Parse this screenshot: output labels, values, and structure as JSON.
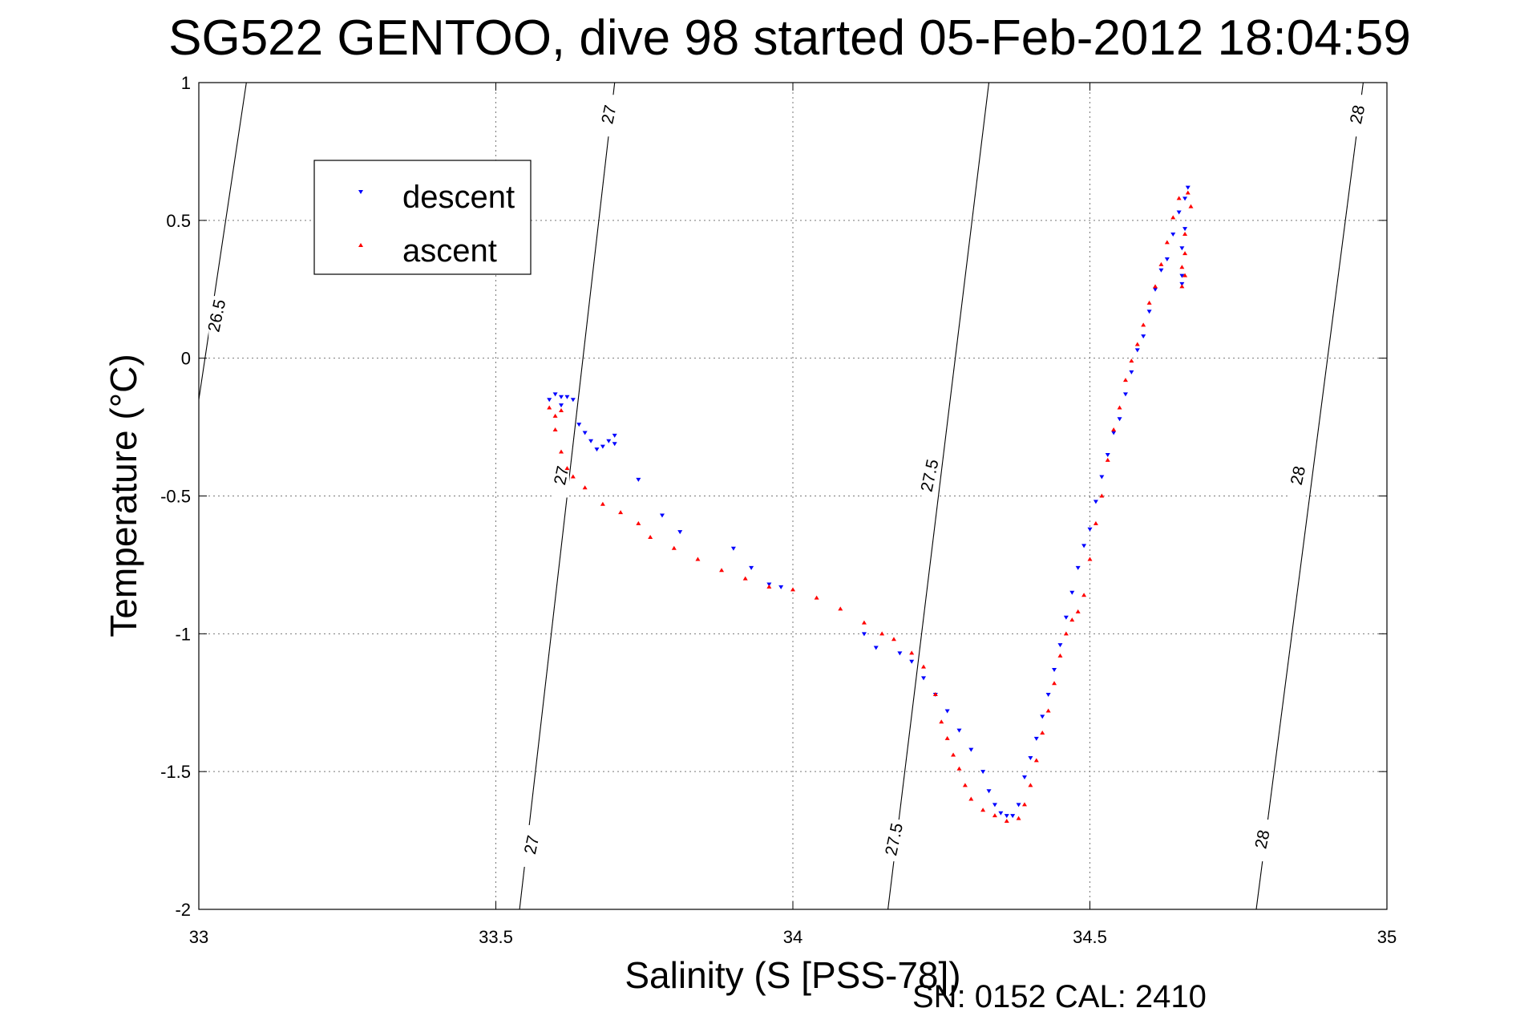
{
  "chart_data": {
    "type": "scatter",
    "title": "SG522 GENTOO, dive 98 started 05-Feb-2012 18:04:59",
    "xlabel": "Salinity (S [PSS-78])",
    "ylabel": "Temperature (°C)",
    "xlim": [
      33,
      35
    ],
    "ylim": [
      -2,
      1
    ],
    "xticks": [
      "33",
      "33.5",
      "34",
      "34.5",
      "35"
    ],
    "yticks": [
      "-2",
      "-1.5",
      "-1",
      "-0.5",
      "0",
      "0.5",
      "1"
    ],
    "grid": true,
    "legend_position": "top-left",
    "footer": "SN: 0152  CAL: 2410",
    "density_contours": [
      {
        "label": "26.5",
        "points": [
          [
            33.0,
            -0.15
          ],
          [
            33.08,
            1.0
          ]
        ]
      },
      {
        "label": "27",
        "points": [
          [
            33.54,
            -2.0
          ],
          [
            33.7,
            1.0
          ]
        ]
      },
      {
        "label": "27.5",
        "points": [
          [
            34.16,
            -2.0
          ],
          [
            34.33,
            1.0
          ]
        ]
      },
      {
        "label": "28",
        "points": [
          [
            34.78,
            -2.0
          ],
          [
            34.96,
            1.0
          ]
        ]
      }
    ],
    "contour_labels": [
      {
        "text": "26.5",
        "x": 33.03,
        "y": 0.15
      },
      {
        "text": "27",
        "x": 33.69,
        "y": 0.88
      },
      {
        "text": "27",
        "x": 33.61,
        "y": -0.43
      },
      {
        "text": "27",
        "x": 33.56,
        "y": -1.77
      },
      {
        "text": "27.5",
        "x": 34.23,
        "y": -0.43
      },
      {
        "text": "27.5",
        "x": 34.17,
        "y": -1.75
      },
      {
        "text": "28",
        "x": 34.95,
        "y": 0.88
      },
      {
        "text": "28",
        "x": 34.85,
        "y": -0.43
      },
      {
        "text": "28",
        "x": 34.79,
        "y": -1.75
      }
    ],
    "series": [
      {
        "name": "descent",
        "color": "#0000ff",
        "marker": "triangle-down",
        "points": [
          [
            33.59,
            -0.15
          ],
          [
            33.6,
            -0.13
          ],
          [
            33.61,
            -0.14
          ],
          [
            33.62,
            -0.14
          ],
          [
            33.63,
            -0.15
          ],
          [
            33.61,
            -0.17
          ],
          [
            33.64,
            -0.24
          ],
          [
            33.65,
            -0.27
          ],
          [
            33.66,
            -0.3
          ],
          [
            33.67,
            -0.33
          ],
          [
            33.68,
            -0.32
          ],
          [
            33.69,
            -0.3
          ],
          [
            33.7,
            -0.28
          ],
          [
            33.7,
            -0.31
          ],
          [
            33.74,
            -0.44
          ],
          [
            33.78,
            -0.57
          ],
          [
            33.81,
            -0.63
          ],
          [
            33.9,
            -0.69
          ],
          [
            33.93,
            -0.76
          ],
          [
            33.96,
            -0.82
          ],
          [
            33.98,
            -0.83
          ],
          [
            34.12,
            -1.0
          ],
          [
            34.14,
            -1.05
          ],
          [
            34.18,
            -1.07
          ],
          [
            34.2,
            -1.1
          ],
          [
            34.22,
            -1.16
          ],
          [
            34.24,
            -1.22
          ],
          [
            34.26,
            -1.28
          ],
          [
            34.28,
            -1.35
          ],
          [
            34.3,
            -1.42
          ],
          [
            34.32,
            -1.5
          ],
          [
            34.33,
            -1.57
          ],
          [
            34.34,
            -1.62
          ],
          [
            34.35,
            -1.65
          ],
          [
            34.36,
            -1.66
          ],
          [
            34.37,
            -1.66
          ],
          [
            34.38,
            -1.62
          ],
          [
            34.39,
            -1.52
          ],
          [
            34.4,
            -1.45
          ],
          [
            34.41,
            -1.38
          ],
          [
            34.42,
            -1.3
          ],
          [
            34.43,
            -1.22
          ],
          [
            34.44,
            -1.13
          ],
          [
            34.45,
            -1.04
          ],
          [
            34.46,
            -0.94
          ],
          [
            34.47,
            -0.85
          ],
          [
            34.48,
            -0.76
          ],
          [
            34.49,
            -0.68
          ],
          [
            34.5,
            -0.62
          ],
          [
            34.51,
            -0.52
          ],
          [
            34.52,
            -0.43
          ],
          [
            34.53,
            -0.35
          ],
          [
            34.54,
            -0.27
          ],
          [
            34.55,
            -0.22
          ],
          [
            34.56,
            -0.13
          ],
          [
            34.57,
            -0.05
          ],
          [
            34.58,
            0.03
          ],
          [
            34.59,
            0.08
          ],
          [
            34.6,
            0.17
          ],
          [
            34.61,
            0.25
          ],
          [
            34.62,
            0.32
          ],
          [
            34.63,
            0.36
          ],
          [
            34.64,
            0.45
          ],
          [
            34.65,
            0.53
          ],
          [
            34.66,
            0.58
          ],
          [
            34.665,
            0.62
          ],
          [
            34.66,
            0.47
          ],
          [
            34.655,
            0.4
          ],
          [
            34.655,
            0.3
          ],
          [
            34.655,
            0.27
          ]
        ]
      },
      {
        "name": "ascent",
        "color": "#ff0000",
        "marker": "triangle-up",
        "points": [
          [
            33.59,
            -0.18
          ],
          [
            33.6,
            -0.21
          ],
          [
            33.61,
            -0.19
          ],
          [
            33.6,
            -0.26
          ],
          [
            33.61,
            -0.34
          ],
          [
            33.62,
            -0.4
          ],
          [
            33.63,
            -0.43
          ],
          [
            33.65,
            -0.47
          ],
          [
            33.68,
            -0.53
          ],
          [
            33.71,
            -0.56
          ],
          [
            33.74,
            -0.6
          ],
          [
            33.76,
            -0.65
          ],
          [
            33.8,
            -0.69
          ],
          [
            33.84,
            -0.73
          ],
          [
            33.88,
            -0.77
          ],
          [
            33.92,
            -0.8
          ],
          [
            33.96,
            -0.83
          ],
          [
            34.0,
            -0.84
          ],
          [
            34.04,
            -0.87
          ],
          [
            34.08,
            -0.91
          ],
          [
            34.12,
            -0.96
          ],
          [
            34.15,
            -1.0
          ],
          [
            34.17,
            -1.02
          ],
          [
            34.2,
            -1.07
          ],
          [
            34.22,
            -1.12
          ],
          [
            34.24,
            -1.22
          ],
          [
            34.25,
            -1.32
          ],
          [
            34.26,
            -1.38
          ],
          [
            34.27,
            -1.44
          ],
          [
            34.28,
            -1.49
          ],
          [
            34.29,
            -1.55
          ],
          [
            34.3,
            -1.6
          ],
          [
            34.32,
            -1.64
          ],
          [
            34.34,
            -1.66
          ],
          [
            34.36,
            -1.68
          ],
          [
            34.38,
            -1.67
          ],
          [
            34.39,
            -1.62
          ],
          [
            34.4,
            -1.55
          ],
          [
            34.41,
            -1.46
          ],
          [
            34.42,
            -1.36
          ],
          [
            34.43,
            -1.28
          ],
          [
            34.44,
            -1.18
          ],
          [
            34.45,
            -1.08
          ],
          [
            34.46,
            -1.0
          ],
          [
            34.47,
            -0.95
          ],
          [
            34.48,
            -0.92
          ],
          [
            34.49,
            -0.86
          ],
          [
            34.5,
            -0.73
          ],
          [
            34.51,
            -0.6
          ],
          [
            34.52,
            -0.5
          ],
          [
            34.53,
            -0.37
          ],
          [
            34.54,
            -0.26
          ],
          [
            34.55,
            -0.18
          ],
          [
            34.56,
            -0.08
          ],
          [
            34.57,
            -0.01
          ],
          [
            34.58,
            0.05
          ],
          [
            34.59,
            0.12
          ],
          [
            34.6,
            0.2
          ],
          [
            34.61,
            0.26
          ],
          [
            34.62,
            0.34
          ],
          [
            34.63,
            0.42
          ],
          [
            34.64,
            0.51
          ],
          [
            34.65,
            0.58
          ],
          [
            34.665,
            0.6
          ],
          [
            34.67,
            0.55
          ],
          [
            34.66,
            0.45
          ],
          [
            34.66,
            0.38
          ],
          [
            34.655,
            0.33
          ],
          [
            34.66,
            0.3
          ],
          [
            34.655,
            0.26
          ]
        ]
      }
    ]
  }
}
